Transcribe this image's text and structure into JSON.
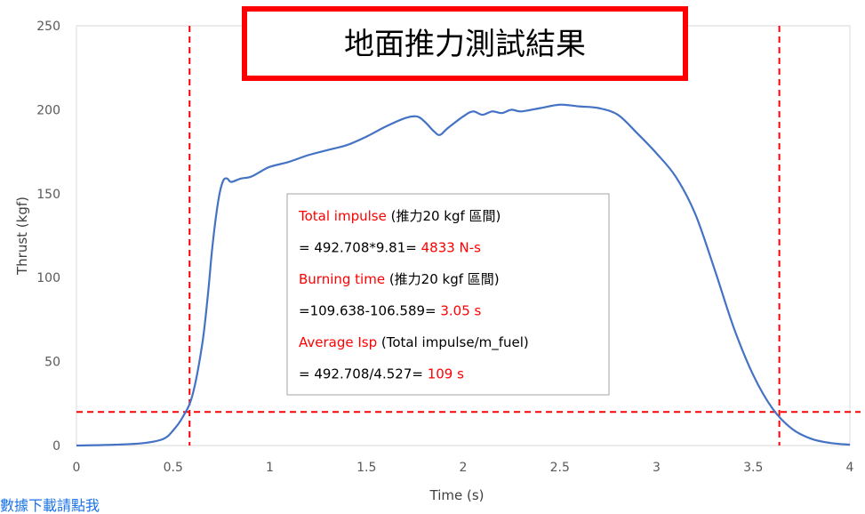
{
  "chart_data": {
    "type": "line",
    "title": "地面推力測試結果",
    "xlabel": "Time (s)",
    "ylabel": "Thrust (kgf)",
    "xlim": [
      0,
      4
    ],
    "ylim": [
      0,
      250
    ],
    "x_ticks": [
      "0",
      "0.5",
      "1",
      "1.5",
      "2",
      "2.5",
      "3",
      "3.5",
      "4"
    ],
    "y_ticks": [
      "0",
      "50",
      "100",
      "150",
      "200",
      "250"
    ],
    "series": [
      {
        "color": "#4472c4",
        "x": [
          0,
          0.2,
          0.35,
          0.45,
          0.5,
          0.55,
          0.6,
          0.65,
          0.68,
          0.7,
          0.72,
          0.74,
          0.76,
          0.78,
          0.8,
          0.85,
          0.9,
          0.95,
          1.0,
          1.1,
          1.2,
          1.3,
          1.4,
          1.5,
          1.6,
          1.7,
          1.76,
          1.8,
          1.85,
          1.88,
          1.92,
          2.0,
          2.05,
          2.1,
          2.15,
          2.2,
          2.25,
          2.3,
          2.4,
          2.5,
          2.6,
          2.7,
          2.8,
          2.9,
          3.0,
          3.1,
          3.2,
          3.3,
          3.4,
          3.5,
          3.6,
          3.7,
          3.8,
          3.9,
          4.0
        ],
        "y": [
          0,
          0.5,
          1.5,
          4,
          9,
          17,
          30,
          60,
          90,
          115,
          135,
          150,
          158,
          159,
          157,
          159,
          160,
          163,
          166,
          169,
          173,
          176,
          179,
          184,
          190,
          195,
          196,
          193,
          187,
          185,
          189,
          196,
          199,
          197,
          199,
          198,
          200,
          199,
          201,
          203,
          202,
          201,
          197,
          186,
          174,
          160,
          138,
          105,
          70,
          42,
          22,
          10,
          4,
          1.5,
          0.5
        ]
      }
    ],
    "reference_lines": {
      "horizontal_y": 20,
      "vertical_x": [
        0.585,
        3.635
      ],
      "color": "#ff0000",
      "style": "dashed"
    },
    "annotation": {
      "lines": [
        [
          {
            "text": "Total impulse",
            "color": "red"
          },
          {
            "text": " (推力20 kgf 區間)",
            "color": "black"
          }
        ],
        [
          {
            "text": "= 492.708*9.81= ",
            "color": "black"
          },
          {
            "text": "4833 N-s",
            "color": "red"
          }
        ],
        [
          {
            "text": "Burning time",
            "color": "red"
          },
          {
            "text": " (推力20 kgf 區間)",
            "color": "black"
          }
        ],
        [
          {
            "text": "=109.638-106.589= ",
            "color": "black"
          },
          {
            "text": "3.05 s",
            "color": "red"
          }
        ],
        [
          {
            "text": "Average Isp",
            "color": "red"
          },
          {
            "text": " (Total impulse/m_fuel)",
            "color": "black"
          }
        ],
        [
          {
            "text": "= 492.708/4.527= ",
            "color": "black"
          },
          {
            "text": "109 s",
            "color": "red"
          }
        ]
      ]
    },
    "grid": false,
    "legend": "none"
  },
  "footer": {
    "link_text": "數據下載請點我"
  }
}
